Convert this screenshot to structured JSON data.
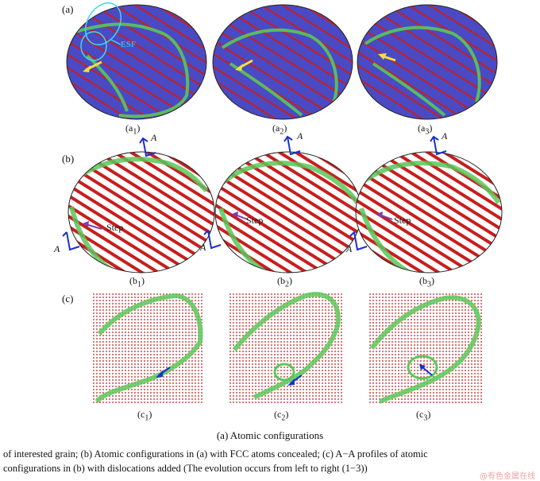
{
  "figure": {
    "row_labels": [
      "(a)",
      "(b)",
      "(c)"
    ],
    "panels_a": [
      {
        "label_main": "(a",
        "label_sub": "1",
        "label_close": ")"
      },
      {
        "label_main": "(a",
        "label_sub": "2",
        "label_close": ")"
      },
      {
        "label_main": "(a",
        "label_sub": "3",
        "label_close": ")"
      }
    ],
    "panels_b": [
      {
        "label_main": "(b",
        "label_sub": "1",
        "label_close": ")"
      },
      {
        "label_main": "(b",
        "label_sub": "2",
        "label_close": ")"
      },
      {
        "label_main": "(b",
        "label_sub": "3",
        "label_close": ")"
      }
    ],
    "panels_c": [
      {
        "label_main": "(c",
        "label_sub": "1",
        "label_close": ")"
      },
      {
        "label_main": "(c",
        "label_sub": "2",
        "label_close": ")"
      },
      {
        "label_main": "(c",
        "label_sub": "3",
        "label_close": ")"
      }
    ],
    "esf_label": "ESF",
    "step_label": "Step",
    "section_label": "A",
    "colors": {
      "fcc_blue": "#4646c8",
      "hcp_red": "#c81e1e",
      "other_green": "#5ac85a",
      "arrow_yellow": "#f0e040",
      "arrow_blue": "#1a2fd0",
      "arrow_purple": "#7a3fb0",
      "esf_cyan": "#40d8f0"
    }
  },
  "caption": {
    "title": "(a) Atomic configurations",
    "line1": "of interested grain; (b) Atomic configurations in (a) with FCC atoms concealed; (c) A−A profiles of atomic",
    "line2": "configurations in (b) with dislocations added (The evolution occurs from left to right (1−3))"
  },
  "watermark": "@有色金属在线"
}
